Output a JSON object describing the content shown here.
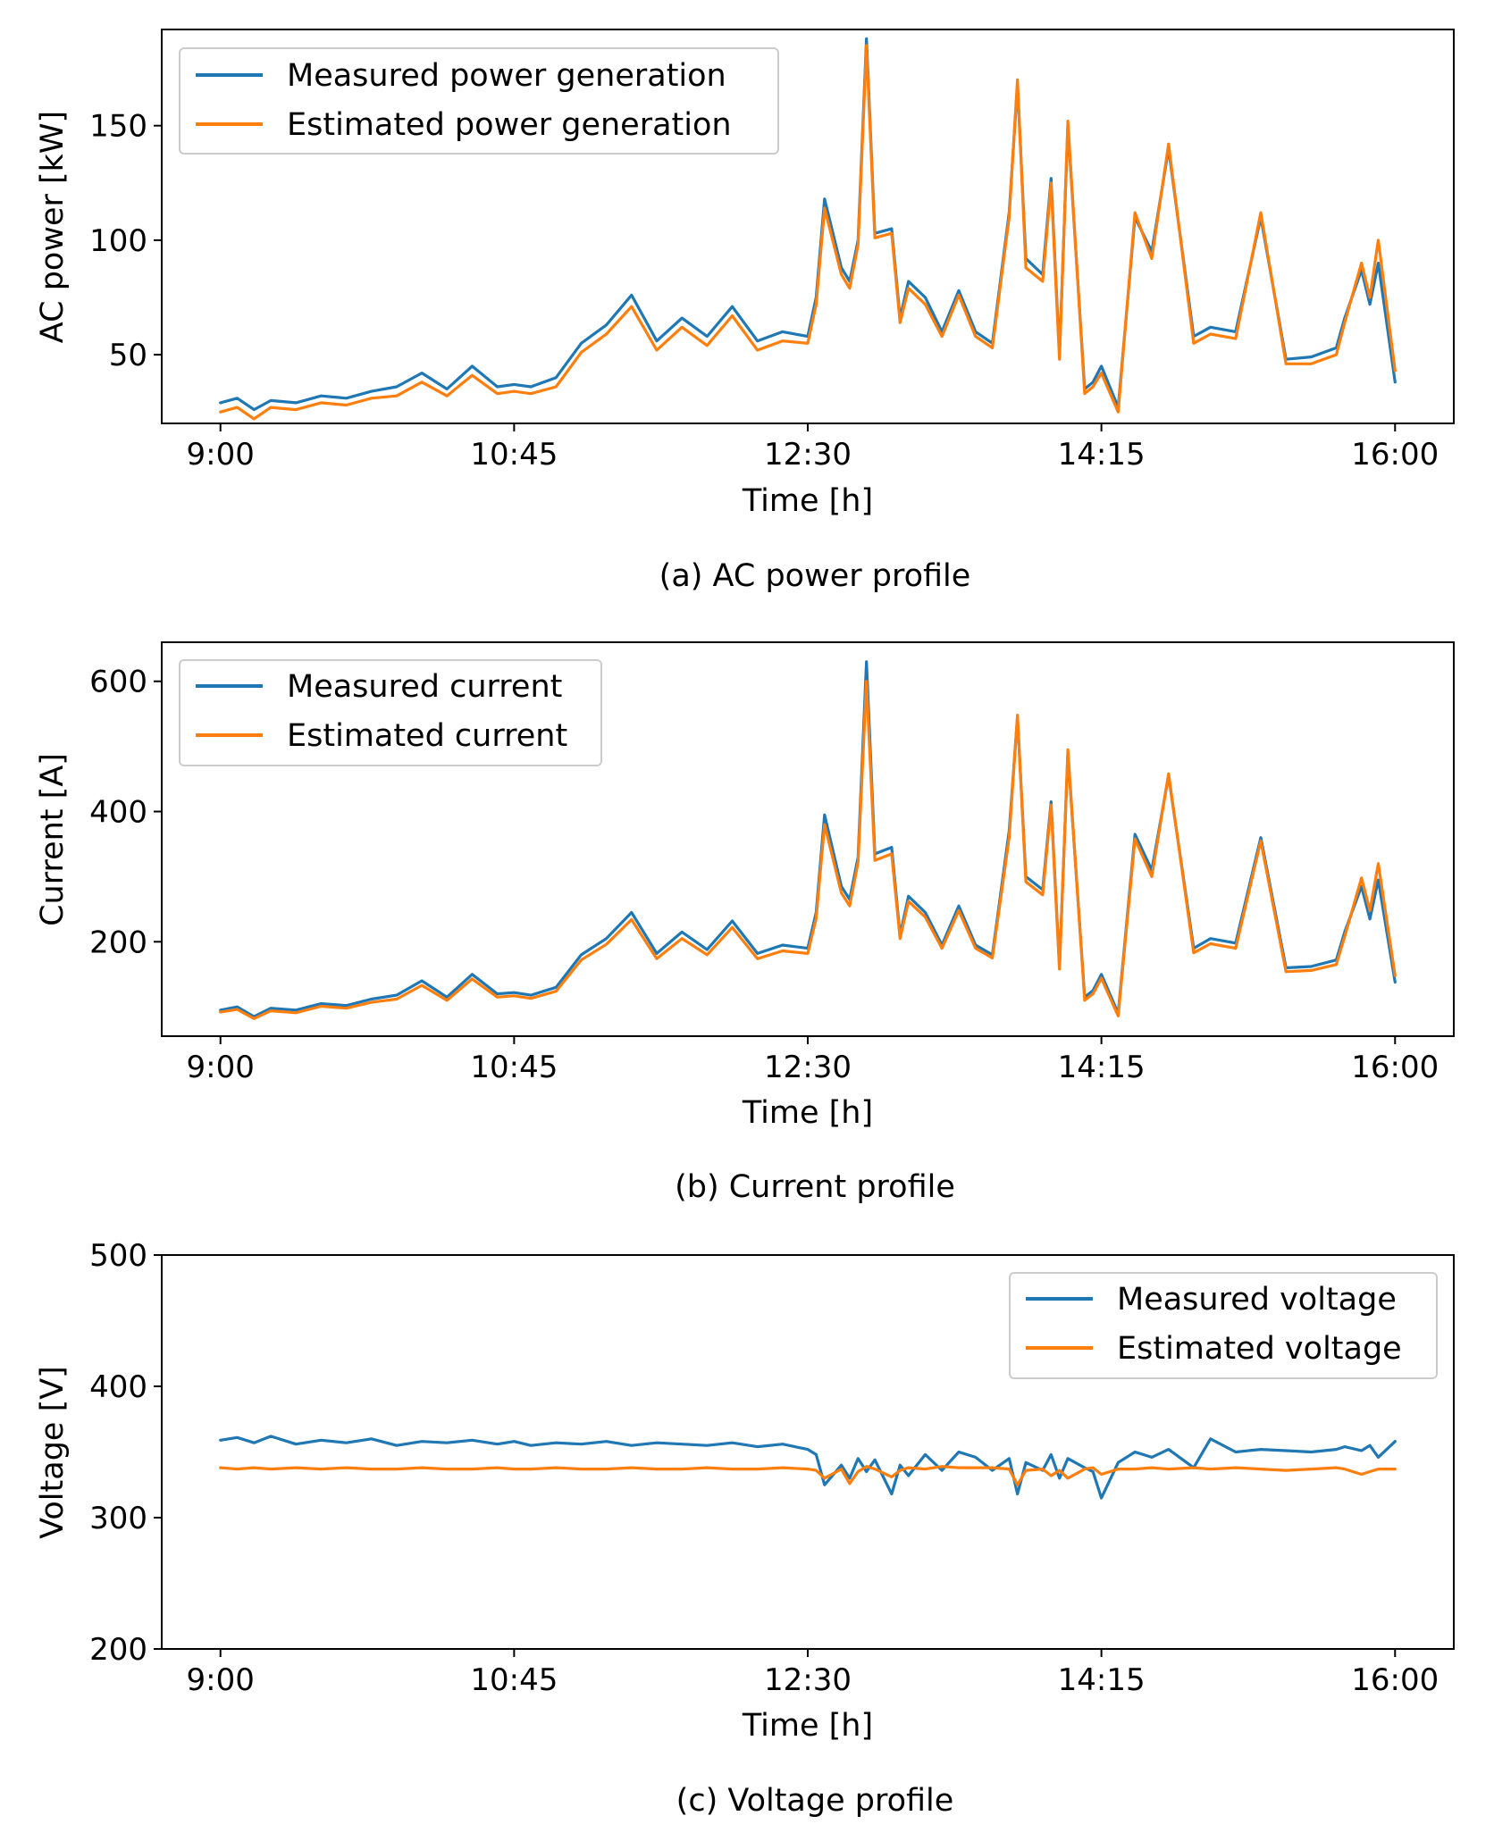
{
  "chart_data": [
    {
      "type": "line",
      "caption": "(a) AC power profile",
      "xlabel": "Time [h]",
      "ylabel": "AC power [kW]",
      "xlim": [
        -0.35,
        7.35
      ],
      "ylim": [
        20,
        192
      ],
      "x_ticks": [
        0,
        1.75,
        3.5,
        5.25,
        7
      ],
      "x_tick_labels": [
        "9:00",
        "10:45",
        "12:30",
        "14:15",
        "16:00"
      ],
      "y_ticks": [
        50,
        100,
        150
      ],
      "y_tick_labels": [
        "50",
        "100",
        "150"
      ],
      "legend": "upper left",
      "series": [
        {
          "name": "Measured power generation",
          "color": "#1f77b4",
          "x": [
            0,
            0.1,
            0.2,
            0.3,
            0.45,
            0.6,
            0.75,
            0.9,
            1.05,
            1.2,
            1.35,
            1.5,
            1.65,
            1.75,
            1.85,
            2,
            2.15,
            2.3,
            2.45,
            2.6,
            2.75,
            2.9,
            3.05,
            3.2,
            3.35,
            3.5,
            3.55,
            3.6,
            3.7,
            3.75,
            3.8,
            3.85,
            3.9,
            4.0,
            4.05,
            4.1,
            4.2,
            4.3,
            4.4,
            4.5,
            4.6,
            4.7,
            4.75,
            4.8,
            4.9,
            4.95,
            5.0,
            5.05,
            5.15,
            5.2,
            5.25,
            5.35,
            5.45,
            5.55,
            5.65,
            5.8,
            5.9,
            6.05,
            6.2,
            6.35,
            6.5,
            6.65,
            6.7,
            6.8,
            6.85,
            6.9,
            7.0
          ],
          "values": [
            29,
            31,
            26,
            30,
            29,
            32,
            31,
            34,
            36,
            42,
            35,
            45,
            36,
            37,
            36,
            40,
            55,
            63,
            76,
            56,
            66,
            58,
            71,
            56,
            60,
            58,
            75,
            118,
            88,
            82,
            100,
            188,
            103,
            105,
            66,
            82,
            75,
            60,
            78,
            60,
            55,
            112,
            168,
            92,
            85,
            127,
            50,
            150,
            35,
            38,
            45,
            27,
            110,
            95,
            140,
            58,
            62,
            60,
            110,
            48,
            49,
            53,
            66,
            87,
            72,
            90,
            38
          ]
        },
        {
          "name": "Estimated power generation",
          "color": "#ff7f0e",
          "x": [
            0,
            0.1,
            0.2,
            0.3,
            0.45,
            0.6,
            0.75,
            0.9,
            1.05,
            1.2,
            1.35,
            1.5,
            1.65,
            1.75,
            1.85,
            2,
            2.15,
            2.3,
            2.45,
            2.6,
            2.75,
            2.9,
            3.05,
            3.2,
            3.35,
            3.5,
            3.55,
            3.6,
            3.7,
            3.75,
            3.8,
            3.85,
            3.9,
            4.0,
            4.05,
            4.1,
            4.2,
            4.3,
            4.4,
            4.5,
            4.6,
            4.7,
            4.75,
            4.8,
            4.9,
            4.95,
            5.0,
            5.05,
            5.15,
            5.2,
            5.25,
            5.35,
            5.45,
            5.55,
            5.65,
            5.8,
            5.9,
            6.05,
            6.2,
            6.35,
            6.5,
            6.65,
            6.7,
            6.8,
            6.85,
            6.9,
            7.0
          ],
          "values": [
            25,
            27,
            22,
            27,
            26,
            29,
            28,
            31,
            32,
            38,
            32,
            41,
            33,
            34,
            33,
            36,
            51,
            59,
            71,
            52,
            62,
            54,
            67,
            52,
            56,
            55,
            72,
            114,
            85,
            79,
            98,
            185,
            101,
            103,
            64,
            79,
            72,
            58,
            76,
            58,
            53,
            110,
            170,
            88,
            82,
            125,
            48,
            152,
            33,
            36,
            42,
            25,
            112,
            92,
            142,
            55,
            59,
            57,
            112,
            46,
            46,
            50,
            64,
            90,
            75,
            100,
            43
          ]
        }
      ]
    },
    {
      "type": "line",
      "caption": "(b) Current profile",
      "xlabel": "Time [h]",
      "ylabel": "Current [A]",
      "xlim": [
        -0.35,
        7.35
      ],
      "ylim": [
        55,
        660
      ],
      "x_ticks": [
        0,
        1.75,
        3.5,
        5.25,
        7
      ],
      "x_tick_labels": [
        "9:00",
        "10:45",
        "12:30",
        "14:15",
        "16:00"
      ],
      "y_ticks": [
        200,
        400,
        600
      ],
      "y_tick_labels": [
        "200",
        "400",
        "600"
      ],
      "legend": "upper left",
      "series": [
        {
          "name": "Measured current",
          "color": "#1f77b4",
          "x": [
            0,
            0.1,
            0.2,
            0.3,
            0.45,
            0.6,
            0.75,
            0.9,
            1.05,
            1.2,
            1.35,
            1.5,
            1.65,
            1.75,
            1.85,
            2,
            2.15,
            2.3,
            2.45,
            2.6,
            2.75,
            2.9,
            3.05,
            3.2,
            3.35,
            3.5,
            3.55,
            3.6,
            3.7,
            3.75,
            3.8,
            3.85,
            3.9,
            4.0,
            4.05,
            4.1,
            4.2,
            4.3,
            4.4,
            4.5,
            4.6,
            4.7,
            4.75,
            4.8,
            4.9,
            4.95,
            5.0,
            5.05,
            5.15,
            5.2,
            5.25,
            5.35,
            5.45,
            5.55,
            5.65,
            5.8,
            5.9,
            6.05,
            6.2,
            6.35,
            6.5,
            6.65,
            6.7,
            6.8,
            6.85,
            6.9,
            7.0
          ],
          "values": [
            95,
            100,
            85,
            98,
            95,
            105,
            102,
            112,
            118,
            140,
            115,
            150,
            120,
            122,
            118,
            130,
            180,
            205,
            245,
            182,
            215,
            188,
            232,
            182,
            195,
            190,
            245,
            395,
            285,
            265,
            330,
            630,
            335,
            345,
            210,
            270,
            245,
            195,
            255,
            195,
            180,
            370,
            545,
            300,
            280,
            415,
            162,
            490,
            115,
            125,
            150,
            90,
            365,
            310,
            455,
            190,
            205,
            198,
            360,
            160,
            162,
            172,
            215,
            285,
            235,
            295,
            138
          ]
        },
        {
          "name": "Estimated current",
          "color": "#ff7f0e",
          "x": [
            0,
            0.1,
            0.2,
            0.3,
            0.45,
            0.6,
            0.75,
            0.9,
            1.05,
            1.2,
            1.35,
            1.5,
            1.65,
            1.75,
            1.85,
            2,
            2.15,
            2.3,
            2.45,
            2.6,
            2.75,
            2.9,
            3.05,
            3.2,
            3.35,
            3.5,
            3.55,
            3.6,
            3.7,
            3.75,
            3.8,
            3.85,
            3.9,
            4.0,
            4.05,
            4.1,
            4.2,
            4.3,
            4.4,
            4.5,
            4.6,
            4.7,
            4.75,
            4.8,
            4.9,
            4.95,
            5.0,
            5.05,
            5.15,
            5.2,
            5.25,
            5.35,
            5.45,
            5.55,
            5.65,
            5.8,
            5.9,
            6.05,
            6.2,
            6.35,
            6.5,
            6.65,
            6.7,
            6.8,
            6.85,
            6.9,
            7.0
          ],
          "values": [
            92,
            96,
            82,
            94,
            91,
            101,
            98,
            107,
            112,
            133,
            110,
            143,
            115,
            117,
            113,
            124,
            172,
            196,
            234,
            174,
            205,
            180,
            222,
            174,
            186,
            182,
            236,
            380,
            275,
            255,
            322,
            600,
            325,
            335,
            205,
            262,
            238,
            190,
            248,
            190,
            175,
            360,
            548,
            292,
            272,
            410,
            158,
            495,
            110,
            120,
            144,
            86,
            358,
            300,
            458,
            183,
            197,
            190,
            355,
            154,
            156,
            165,
            208,
            298,
            248,
            320,
            148
          ]
        }
      ]
    },
    {
      "type": "line",
      "caption": "(c) Voltage profile",
      "xlabel": "Time [h]",
      "ylabel": "Voltage [V]",
      "xlim": [
        -0.35,
        7.35
      ],
      "ylim": [
        200,
        500
      ],
      "x_ticks": [
        0,
        1.75,
        3.5,
        5.25,
        7
      ],
      "x_tick_labels": [
        "9:00",
        "10:45",
        "12:30",
        "14:15",
        "16:00"
      ],
      "y_ticks": [
        200,
        300,
        400,
        500
      ],
      "y_tick_labels": [
        "200",
        "300",
        "400",
        "500"
      ],
      "legend": "upper right",
      "series": [
        {
          "name": "Measured voltage",
          "color": "#1f77b4",
          "x": [
            0,
            0.1,
            0.2,
            0.3,
            0.45,
            0.6,
            0.75,
            0.9,
            1.05,
            1.2,
            1.35,
            1.5,
            1.65,
            1.75,
            1.85,
            2,
            2.15,
            2.3,
            2.45,
            2.6,
            2.75,
            2.9,
            3.05,
            3.2,
            3.35,
            3.5,
            3.55,
            3.6,
            3.7,
            3.75,
            3.8,
            3.85,
            3.9,
            4.0,
            4.05,
            4.1,
            4.2,
            4.3,
            4.4,
            4.5,
            4.6,
            4.7,
            4.75,
            4.8,
            4.9,
            4.95,
            5.0,
            5.05,
            5.15,
            5.2,
            5.25,
            5.35,
            5.45,
            5.55,
            5.65,
            5.8,
            5.9,
            6.05,
            6.2,
            6.35,
            6.5,
            6.65,
            6.7,
            6.8,
            6.85,
            6.9,
            7.0
          ],
          "values": [
            359,
            361,
            357,
            362,
            356,
            359,
            357,
            360,
            355,
            358,
            357,
            359,
            356,
            358,
            355,
            357,
            356,
            358,
            355,
            357,
            356,
            355,
            357,
            354,
            356,
            352,
            348,
            325,
            340,
            330,
            345,
            335,
            344,
            318,
            340,
            332,
            348,
            336,
            350,
            346,
            336,
            345,
            318,
            342,
            336,
            348,
            330,
            345,
            338,
            335,
            315,
            342,
            350,
            346,
            352,
            338,
            360,
            350,
            352,
            351,
            350,
            352,
            354,
            351,
            355,
            346,
            358
          ]
        },
        {
          "name": "Estimated voltage",
          "color": "#ff7f0e",
          "x": [
            0,
            0.1,
            0.2,
            0.3,
            0.45,
            0.6,
            0.75,
            0.9,
            1.05,
            1.2,
            1.35,
            1.5,
            1.65,
            1.75,
            1.85,
            2,
            2.15,
            2.3,
            2.45,
            2.6,
            2.75,
            2.9,
            3.05,
            3.2,
            3.35,
            3.5,
            3.55,
            3.6,
            3.7,
            3.75,
            3.8,
            3.85,
            3.9,
            4.0,
            4.05,
            4.1,
            4.2,
            4.3,
            4.4,
            4.5,
            4.6,
            4.7,
            4.75,
            4.8,
            4.9,
            4.95,
            5.0,
            5.05,
            5.15,
            5.2,
            5.25,
            5.35,
            5.45,
            5.55,
            5.65,
            5.8,
            5.9,
            6.05,
            6.2,
            6.35,
            6.5,
            6.65,
            6.7,
            6.8,
            6.85,
            6.9,
            7.0
          ],
          "values": [
            338,
            337,
            338,
            337,
            338,
            337,
            338,
            337,
            337,
            338,
            337,
            337,
            338,
            337,
            337,
            338,
            337,
            337,
            338,
            337,
            337,
            338,
            337,
            337,
            338,
            337,
            336,
            330,
            337,
            326,
            335,
            339,
            337,
            331,
            336,
            338,
            337,
            339,
            338,
            338,
            338,
            337,
            325,
            336,
            337,
            332,
            336,
            330,
            337,
            338,
            333,
            337,
            337,
            338,
            337,
            338,
            337,
            338,
            337,
            336,
            337,
            338,
            337,
            333,
            335,
            337,
            337
          ]
        }
      ]
    }
  ]
}
